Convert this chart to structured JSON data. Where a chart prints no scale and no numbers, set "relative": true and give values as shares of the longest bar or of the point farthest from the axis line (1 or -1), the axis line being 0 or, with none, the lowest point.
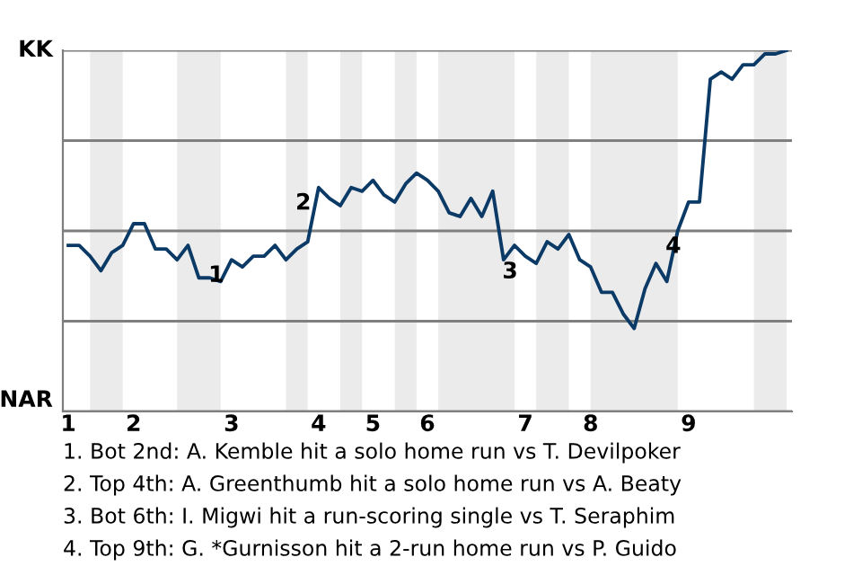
{
  "chart_data": {
    "type": "line",
    "relative": true,
    "categories": [
      "1",
      null,
      null,
      null,
      null,
      null,
      "2",
      null,
      null,
      null,
      null,
      null,
      null,
      null,
      null,
      "3",
      null,
      null,
      null,
      null,
      null,
      null,
      null,
      "4",
      null,
      null,
      null,
      null,
      "5",
      null,
      null,
      null,
      null,
      "6",
      null,
      null,
      null,
      null,
      null,
      null,
      null,
      null,
      "7",
      null,
      null,
      null,
      null,
      null,
      "8",
      null,
      null,
      null,
      null,
      null,
      null,
      null,
      null,
      "9",
      null,
      null,
      null,
      null,
      null,
      null,
      null,
      null,
      null
    ],
    "series": [
      {
        "color": "#0b3a66",
        "values": [
          0.46,
          0.46,
          0.43,
          0.39,
          0.44,
          0.46,
          0.52,
          0.52,
          0.45,
          0.45,
          0.42,
          0.46,
          0.37,
          0.37,
          0.36,
          0.42,
          0.4,
          0.43,
          0.43,
          0.46,
          0.42,
          0.45,
          0.47,
          0.62,
          0.59,
          0.57,
          0.62,
          0.61,
          0.64,
          0.6,
          0.58,
          0.63,
          0.66,
          0.64,
          0.61,
          0.55,
          0.54,
          0.59,
          0.54,
          0.61,
          0.42,
          0.46,
          0.43,
          0.41,
          0.47,
          0.45,
          0.49,
          0.42,
          0.4,
          0.33,
          0.33,
          0.27,
          0.23,
          0.34,
          0.41,
          0.36,
          0.5,
          0.58,
          0.58,
          0.92,
          0.94,
          0.92,
          0.96,
          0.96,
          0.99,
          0.99,
          1.0
        ]
      }
    ],
    "ref_lines": [
      {
        "axis": "y",
        "value": 0,
        "label": "NAR"
      },
      {
        "axis": "y",
        "value": 0.25
      },
      {
        "axis": "y",
        "value": 0.5
      },
      {
        "axis": "y",
        "value": 0.75
      },
      {
        "axis": "y",
        "value": 1,
        "label": "KK"
      }
    ],
    "annotations": [
      {
        "text": "1",
        "x": "3",
        "y": 0.42
      },
      {
        "text": "2",
        "x": "4",
        "y": 0.62
      },
      {
        "text": "3",
        "x": "7",
        "y": 0.43
      },
      {
        "text": "4",
        "x": "9",
        "y": 0.5
      },
      "1. Bot 2nd: A. Kemble hit a solo home run vs T. Devilpoker",
      "2. Top 4th: A. Greenthumb hit a solo home run vs A. Beaty",
      "3. Bot 6th: I. Migwi hit a run-scoring single vs T. Seraphim",
      "4. Top 9th: G. *Gurnisson hit a 2-run home run vs P. Guido"
    ]
  }
}
